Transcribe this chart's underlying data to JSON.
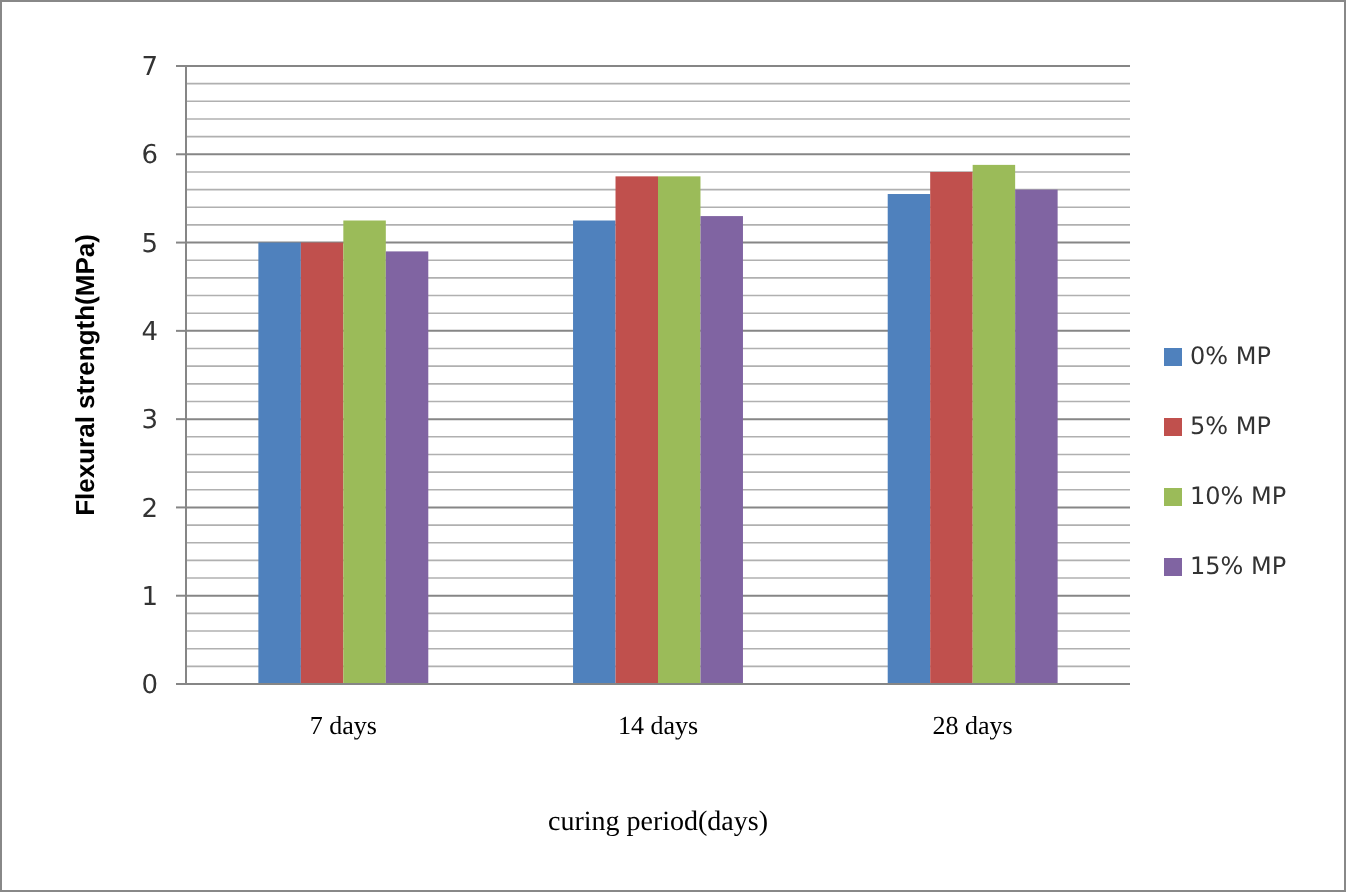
{
  "chart_data": {
    "type": "bar",
    "xlabel": "curing period(days)",
    "ylabel": "Flexural strength(MPa)",
    "categories": [
      "7 days",
      "14 days",
      "28 days"
    ],
    "series": [
      {
        "name": "0% MP",
        "color": "#4f81bd",
        "values": [
          5.0,
          5.25,
          5.55
        ]
      },
      {
        "name": "5% MP",
        "color": "#c0504d",
        "values": [
          5.0,
          5.75,
          5.8
        ]
      },
      {
        "name": "10% MP",
        "color": "#9bbb59",
        "values": [
          5.25,
          5.75,
          5.88
        ]
      },
      {
        "name": "15% MP",
        "color": "#8064a2",
        "values": [
          4.9,
          5.3,
          5.6
        ]
      }
    ],
    "ylim": [
      0,
      7
    ],
    "yticks": [
      0,
      1,
      2,
      3,
      4,
      5,
      6,
      7
    ],
    "grid": true,
    "legend": "right"
  }
}
